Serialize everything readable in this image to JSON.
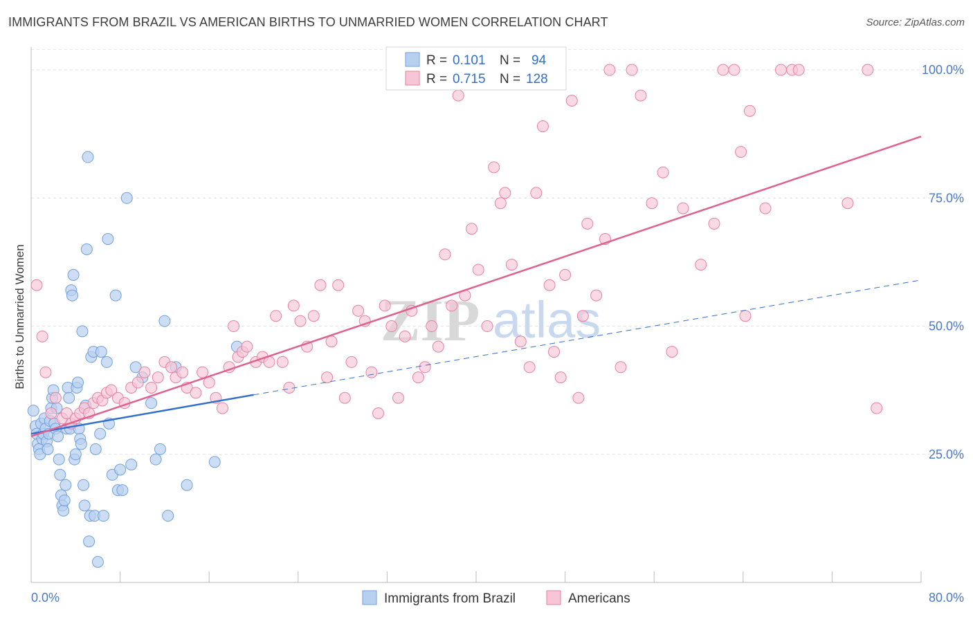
{
  "title": "IMMIGRANTS FROM BRAZIL VS AMERICAN BIRTHS TO UNMARRIED WOMEN CORRELATION CHART",
  "source": "Source: ZipAtlas.com",
  "watermark": {
    "zip": "ZIP",
    "atlas": "atlas"
  },
  "colors": {
    "blue": "#6fa0de",
    "blue_fill": "#b8d0f0",
    "blue_line": "#2f6fcb",
    "pink": "#e87fa3",
    "pink_fill": "#f6c6d6",
    "pink_line": "#e0608e",
    "axis_text": "#4a78c8"
  },
  "chart_data": {
    "type": "scatter",
    "title": "IMMIGRANTS FROM BRAZIL VS AMERICAN BIRTHS TO UNMARRIED WOMEN CORRELATION CHART",
    "xlabel": "",
    "ylabel": "Births to Unmarried Women",
    "xlim": [
      0,
      80
    ],
    "ylim": [
      0,
      105
    ],
    "x_tick_labels": [
      "0.0%",
      "80.0%"
    ],
    "y_tick_labels": [
      "25.0%",
      "50.0%",
      "75.0%",
      "100.0%"
    ],
    "y_ticks": [
      25,
      50,
      75,
      100
    ],
    "legend": [
      {
        "label": "R = ",
        "r": "0.101",
        "n_label": "N = ",
        "n": "94"
      },
      {
        "label": "R = ",
        "r": "0.715",
        "n_label": "N = ",
        "n": "128"
      }
    ],
    "series": [
      {
        "name": "Immigrants from Brazil",
        "trend": {
          "x1": 0,
          "y1": 29,
          "x2": 20,
          "y2": 36.6,
          "dash_x2": 80,
          "dash_y2": 59
        },
        "points": [
          [
            0.2,
            33.5
          ],
          [
            0.4,
            30.5
          ],
          [
            0.5,
            29
          ],
          [
            0.6,
            27
          ],
          [
            0.7,
            26
          ],
          [
            0.8,
            25
          ],
          [
            0.9,
            31
          ],
          [
            1.0,
            28
          ],
          [
            1.1,
            29
          ],
          [
            1.2,
            32
          ],
          [
            1.3,
            30
          ],
          [
            1.4,
            27.5
          ],
          [
            1.5,
            26
          ],
          [
            1.6,
            29
          ],
          [
            1.7,
            31.5
          ],
          [
            1.8,
            34
          ],
          [
            1.9,
            36
          ],
          [
            2.0,
            37.5
          ],
          [
            2.1,
            31
          ],
          [
            2.2,
            30
          ],
          [
            2.3,
            34
          ],
          [
            2.4,
            28.5
          ],
          [
            2.5,
            24
          ],
          [
            2.6,
            21
          ],
          [
            2.7,
            17
          ],
          [
            2.8,
            15
          ],
          [
            2.9,
            14
          ],
          [
            3.0,
            16
          ],
          [
            3.1,
            19
          ],
          [
            3.2,
            30
          ],
          [
            3.3,
            38
          ],
          [
            3.4,
            36
          ],
          [
            3.5,
            30
          ],
          [
            3.6,
            57
          ],
          [
            3.7,
            56
          ],
          [
            3.8,
            60
          ],
          [
            3.9,
            24
          ],
          [
            4.0,
            25
          ],
          [
            4.1,
            38
          ],
          [
            4.2,
            39
          ],
          [
            4.3,
            30
          ],
          [
            4.4,
            28
          ],
          [
            4.5,
            27
          ],
          [
            4.6,
            49
          ],
          [
            4.7,
            19
          ],
          [
            4.8,
            15
          ],
          [
            4.9,
            34.5
          ],
          [
            5.0,
            65
          ],
          [
            5.1,
            83
          ],
          [
            5.2,
            8
          ],
          [
            5.3,
            13
          ],
          [
            5.4,
            44
          ],
          [
            5.6,
            45
          ],
          [
            5.7,
            13
          ],
          [
            5.8,
            26
          ],
          [
            6.0,
            4
          ],
          [
            6.2,
            29
          ],
          [
            6.3,
            45
          ],
          [
            6.5,
            13
          ],
          [
            6.8,
            43
          ],
          [
            6.9,
            67
          ],
          [
            7.0,
            31
          ],
          [
            7.3,
            21
          ],
          [
            7.6,
            56
          ],
          [
            7.8,
            18
          ],
          [
            8.0,
            22
          ],
          [
            8.2,
            18
          ],
          [
            8.6,
            75
          ],
          [
            9.0,
            23
          ],
          [
            9.4,
            42
          ],
          [
            10.0,
            40
          ],
          [
            10.8,
            35
          ],
          [
            11.2,
            24
          ],
          [
            11.6,
            26
          ],
          [
            12.0,
            51
          ],
          [
            12.3,
            13
          ],
          [
            13.0,
            42
          ],
          [
            14.0,
            19
          ],
          [
            16.5,
            23.5
          ],
          [
            18.5,
            46
          ]
        ]
      },
      {
        "name": "Americans",
        "trend": {
          "x1": 0,
          "y1": 28.5,
          "x2": 80,
          "y2": 87
        },
        "points": [
          [
            0.5,
            58
          ],
          [
            1.0,
            48
          ],
          [
            1.3,
            41
          ],
          [
            1.8,
            33
          ],
          [
            2.2,
            36
          ],
          [
            2.8,
            32
          ],
          [
            3.2,
            33
          ],
          [
            3.6,
            31
          ],
          [
            4.0,
            32
          ],
          [
            4.4,
            33
          ],
          [
            4.8,
            34
          ],
          [
            5.2,
            33
          ],
          [
            5.6,
            35
          ],
          [
            6.0,
            36
          ],
          [
            6.4,
            35.5
          ],
          [
            6.8,
            37
          ],
          [
            7.2,
            37.5
          ],
          [
            7.8,
            36
          ],
          [
            8.4,
            35
          ],
          [
            9.0,
            38
          ],
          [
            9.6,
            39
          ],
          [
            10.2,
            41
          ],
          [
            10.8,
            38
          ],
          [
            11.4,
            40
          ],
          [
            12.0,
            43
          ],
          [
            12.6,
            42
          ],
          [
            13.0,
            40
          ],
          [
            13.6,
            41
          ],
          [
            14.0,
            38
          ],
          [
            14.8,
            37
          ],
          [
            15.4,
            41
          ],
          [
            16.0,
            39
          ],
          [
            16.6,
            36
          ],
          [
            17.2,
            34
          ],
          [
            17.8,
            42
          ],
          [
            18.2,
            50
          ],
          [
            18.6,
            44
          ],
          [
            19.0,
            45
          ],
          [
            19.4,
            46
          ],
          [
            20.2,
            43
          ],
          [
            20.8,
            44
          ],
          [
            21.4,
            43
          ],
          [
            22.0,
            52
          ],
          [
            22.6,
            43
          ],
          [
            23.2,
            38
          ],
          [
            23.6,
            54
          ],
          [
            24.2,
            51
          ],
          [
            24.8,
            46
          ],
          [
            25.4,
            52
          ],
          [
            26.0,
            58
          ],
          [
            26.6,
            40
          ],
          [
            27.0,
            47
          ],
          [
            27.6,
            58
          ],
          [
            28.2,
            36
          ],
          [
            28.8,
            43
          ],
          [
            29.4,
            53
          ],
          [
            30.0,
            51
          ],
          [
            30.6,
            41
          ],
          [
            31.2,
            33
          ],
          [
            31.8,
            54
          ],
          [
            32.4,
            50
          ],
          [
            33.0,
            36
          ],
          [
            33.6,
            48
          ],
          [
            34.2,
            53
          ],
          [
            34.8,
            40
          ],
          [
            35.4,
            42
          ],
          [
            36.0,
            50
          ],
          [
            36.6,
            46
          ],
          [
            37.2,
            64
          ],
          [
            37.8,
            54
          ],
          [
            38.4,
            95
          ],
          [
            39.0,
            56
          ],
          [
            39.6,
            69
          ],
          [
            40.2,
            61
          ],
          [
            41.0,
            50
          ],
          [
            41.6,
            81
          ],
          [
            42.2,
            74
          ],
          [
            42.6,
            76
          ],
          [
            43.2,
            62
          ],
          [
            44.0,
            47
          ],
          [
            44.8,
            42
          ],
          [
            45.4,
            76
          ],
          [
            46.0,
            89
          ],
          [
            46.6,
            58
          ],
          [
            47.0,
            45
          ],
          [
            47.6,
            40
          ],
          [
            48.0,
            60
          ],
          [
            48.6,
            94
          ],
          [
            49.2,
            36
          ],
          [
            49.6,
            52
          ],
          [
            50.0,
            70
          ],
          [
            50.8,
            56
          ],
          [
            51.6,
            67
          ],
          [
            52.0,
            100
          ],
          [
            53.0,
            42
          ],
          [
            54.0,
            100
          ],
          [
            54.8,
            95
          ],
          [
            55.8,
            74
          ],
          [
            56.8,
            80
          ],
          [
            57.6,
            45
          ],
          [
            58.6,
            73
          ],
          [
            60.2,
            62
          ],
          [
            61.4,
            70
          ],
          [
            62.2,
            100
          ],
          [
            63.2,
            100
          ],
          [
            63.8,
            84
          ],
          [
            64.2,
            52
          ],
          [
            64.6,
            92
          ],
          [
            66.0,
            73
          ],
          [
            67.4,
            100
          ],
          [
            68.4,
            100
          ],
          [
            69.0,
            100
          ],
          [
            73.4,
            74
          ],
          [
            75.2,
            100
          ],
          [
            76.0,
            34
          ]
        ]
      }
    ]
  },
  "legend_bottom": [
    {
      "label": "Immigrants from Brazil"
    },
    {
      "label": "Americans"
    }
  ]
}
